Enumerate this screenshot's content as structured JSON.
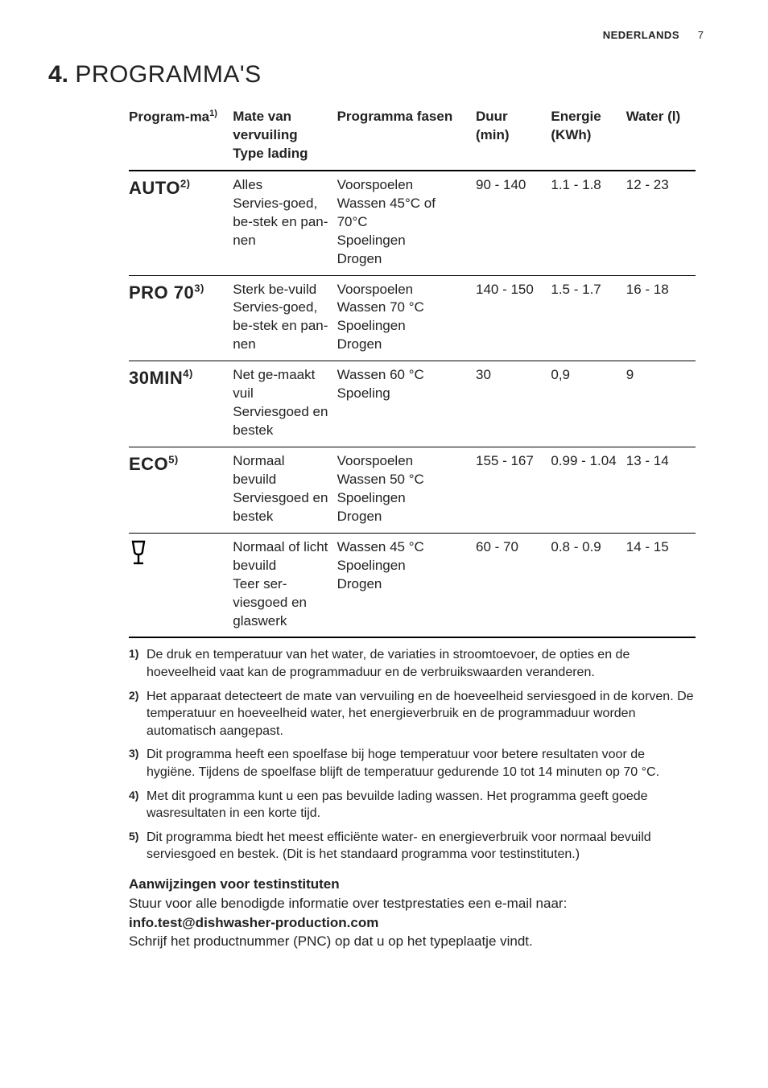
{
  "header": {
    "language": "NEDERLANDS",
    "page_number": "7"
  },
  "section": {
    "number": "4.",
    "title": "PROGRAMMA'S"
  },
  "table": {
    "columns": [
      {
        "label": "Program-ma",
        "sup": "1)"
      },
      {
        "label": "Mate van vervuiling\nType lading",
        "sup": ""
      },
      {
        "label": "Programma fasen",
        "sup": ""
      },
      {
        "label": "Duur (min)",
        "sup": ""
      },
      {
        "label": "Energie (KWh)",
        "sup": ""
      },
      {
        "label": "Water (l)",
        "sup": ""
      }
    ],
    "rows": [
      {
        "name": "AUTO",
        "name_sup": "2)",
        "soil": "Alles\nServies-goed, be-stek en pan-nen",
        "phases": "Voorspoelen\nWassen 45°C of 70°C\nSpoelingen\nDrogen",
        "dur": "90 - 140",
        "energy": "1.1 - 1.8",
        "water": "12 - 23"
      },
      {
        "name": "PRO 70",
        "name_sup": "3)",
        "soil": "Sterk be-vuild\nServies-goed, be-stek en pan-nen",
        "phases": "Voorspoelen\nWassen 70 °C\nSpoelingen\nDrogen",
        "dur": "140 - 150",
        "energy": "1.5 - 1.7",
        "water": "16 - 18"
      },
      {
        "name": "30MIN",
        "name_sup": "4)",
        "soil": "Net ge-maakt vuil\nServiesgoed en bestek",
        "phases": "Wassen 60 °C\nSpoeling",
        "dur": "30",
        "energy": "0,9",
        "water": "9"
      },
      {
        "name": "ECO",
        "name_sup": "5)",
        "soil": "Normaal bevuild\nServiesgoed en bestek",
        "phases": "Voorspoelen\nWassen 50 °C\nSpoelingen\nDrogen",
        "dur": "155 - 167",
        "energy": "0.99 - 1.04",
        "water": "13 - 14"
      },
      {
        "name": "__GLASS_ICON__",
        "name_sup": "",
        "soil": "Normaal of licht bevuild\nTeer ser-viesgoed en glaswerk",
        "phases": "Wassen 45 °C\nSpoelingen\nDrogen",
        "dur": "60 - 70",
        "energy": "0.8 - 0.9",
        "water": "14 - 15"
      }
    ]
  },
  "footnotes": [
    {
      "num": "1)",
      "text": "De druk en temperatuur van het water, de variaties in stroomtoevoer, de opties en de hoeveelheid vaat kan de programmaduur en de verbruikswaarden veranderen."
    },
    {
      "num": "2)",
      "text": "Het apparaat detecteert de mate van vervuiling en de hoeveelheid serviesgoed in de korven. De temperatuur en hoeveelheid water, het energieverbruik en de programmaduur worden automatisch aangepast."
    },
    {
      "num": "3)",
      "text": "Dit programma heeft een spoelfase bij hoge temperatuur voor betere resultaten voor de hygiëne. Tijdens de spoelfase blijft de temperatuur gedurende 10 tot 14 minuten op 70 °C."
    },
    {
      "num": "4)",
      "text": "Met dit programma kunt u een pas bevuilde lading wassen. Het programma geeft goede wasresultaten in een korte tijd."
    },
    {
      "num": "5)",
      "text": "Dit programma biedt het meest efficiënte water- en energieverbruik voor normaal bevuild serviesgoed en bestek. (Dit is het standaard programma voor testinstituten.)"
    }
  ],
  "testinfo": {
    "title": "Aanwijzingen voor testinstituten",
    "line1": "Stuur voor alle benodigde informatie over testprestaties een e-mail naar:",
    "email": "info.test@dishwasher-production.com",
    "line2": "Schrijf het productnummer (PNC) op dat u op het typeplaatje vindt."
  }
}
